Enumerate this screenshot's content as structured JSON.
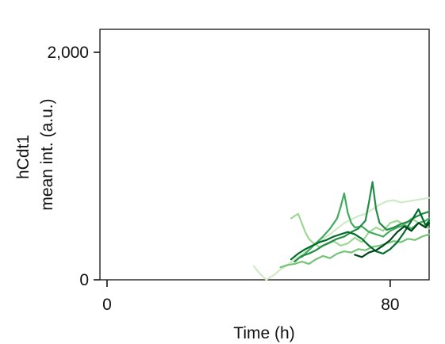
{
  "chart_data": {
    "type": "line",
    "title": "",
    "xlabel": "Time (h)",
    "ylabel": [
      "hCdt1",
      "mean int. (a.u.)"
    ],
    "xlim": [
      -2,
      91
    ],
    "ylim": [
      0,
      2000
    ],
    "xticks": [
      0,
      80
    ],
    "xtick_labels": [
      "0",
      "80"
    ],
    "yticks": [
      0,
      2000
    ],
    "ytick_labels": [
      "0",
      "2,000"
    ],
    "grid": false,
    "legend": "none",
    "series": [
      {
        "color": "#cdebc4",
        "x": [
          41.5,
          43,
          45,
          47,
          49,
          51,
          53,
          55,
          57,
          59,
          61,
          63,
          65,
          67,
          69,
          71,
          73,
          75,
          77,
          79,
          81,
          83,
          85,
          87,
          89,
          91
        ],
        "values": [
          120,
          60,
          0,
          40,
          90,
          130,
          180,
          220,
          280,
          320,
          360,
          400,
          450,
          500,
          530,
          560,
          580,
          620,
          660,
          690,
          700,
          680,
          690,
          700,
          710,
          720
        ]
      },
      {
        "color": "#9fd894",
        "x": [
          52,
          53,
          54,
          55,
          56,
          57,
          58,
          60,
          62,
          64,
          66,
          68,
          70,
          72,
          74,
          76,
          78,
          80,
          82,
          84,
          86,
          88,
          90,
          91
        ],
        "values": [
          540,
          560,
          580,
          500,
          420,
          360,
          330,
          290,
          310,
          340,
          300,
          320,
          370,
          330,
          420,
          460,
          430,
          500,
          520,
          480,
          540,
          500,
          470,
          450
        ]
      },
      {
        "color": "#74c476",
        "x": [
          49,
          51,
          53,
          55,
          57,
          59,
          61,
          63,
          65,
          67,
          69,
          71,
          73,
          75,
          77,
          79,
          81,
          83,
          85,
          87,
          89,
          91
        ],
        "values": [
          110,
          130,
          140,
          160,
          140,
          180,
          210,
          190,
          230,
          250,
          240,
          270,
          260,
          290,
          300,
          320,
          340,
          330,
          360,
          350,
          380,
          400
        ]
      },
      {
        "color": "#41ab5d",
        "x": [
          55,
          57,
          59,
          61,
          63,
          65,
          66,
          67,
          68,
          69,
          70,
          72,
          74,
          76,
          78,
          80,
          82,
          84,
          86,
          88,
          90,
          91
        ],
        "values": [
          200,
          260,
          320,
          380,
          450,
          540,
          640,
          760,
          590,
          500,
          460,
          470,
          420,
          400,
          380,
          430,
          460,
          480,
          450,
          500,
          520,
          540
        ]
      },
      {
        "color": "#238b45",
        "x": [
          53,
          55,
          57,
          59,
          61,
          63,
          65,
          67,
          69,
          71,
          73,
          74,
          75,
          76,
          77,
          79,
          81,
          83,
          85,
          87,
          89,
          91
        ],
        "values": [
          160,
          210,
          230,
          260,
          300,
          330,
          360,
          380,
          420,
          450,
          520,
          680,
          860,
          620,
          500,
          440,
          460,
          490,
          510,
          550,
          580,
          600
        ]
      },
      {
        "color": "#006d2c",
        "x": [
          52,
          54,
          56,
          58,
          60,
          62,
          64,
          66,
          68,
          70,
          72,
          74,
          76,
          78,
          80,
          82,
          84,
          86,
          88,
          90,
          91
        ],
        "values": [
          180,
          230,
          270,
          300,
          330,
          350,
          380,
          400,
          420,
          400,
          360,
          300,
          250,
          230,
          270,
          330,
          420,
          520,
          620,
          480,
          520
        ]
      },
      {
        "color": "#00441b",
        "x": [
          70,
          72,
          74,
          76,
          78,
          80,
          82,
          84,
          86,
          88,
          90,
          91
        ],
        "values": [
          220,
          200,
          240,
          260,
          300,
          350,
          420,
          470,
          430,
          500,
          460,
          500
        ]
      }
    ]
  }
}
